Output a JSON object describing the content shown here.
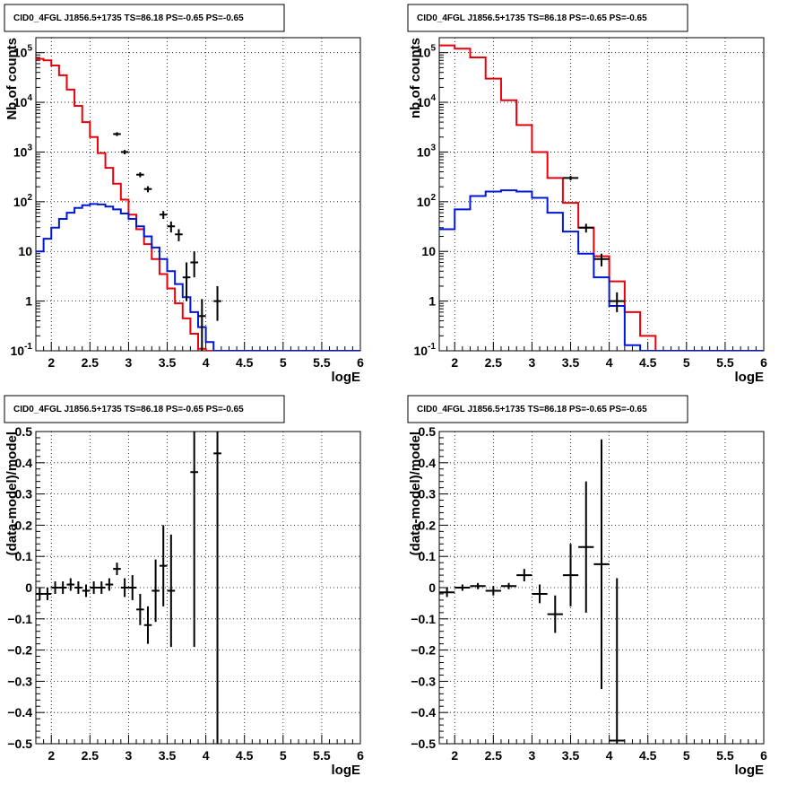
{
  "chart_data": [
    {
      "type": "line",
      "title": "CID0_4FGL J1856.5+1735 TS=86.18 PS=-0.65 PS=-0.65",
      "xlabel": "logE",
      "ylabel": "Nb of counts",
      "log_y": true,
      "xlim": [
        1.8,
        6.0
      ],
      "ylim": [
        0.1,
        200000
      ],
      "grid": true,
      "x_ticks": [
        "2",
        "2.5",
        "3",
        "3.5",
        "4",
        "4.5",
        "5",
        "5.5",
        "6"
      ],
      "y_ticks": [
        {
          "base": "10",
          "exp": "-1"
        },
        {
          "base": "1",
          "exp": ""
        },
        {
          "base": "10",
          "exp": ""
        },
        {
          "base": "10",
          "exp": "2"
        },
        {
          "base": "10",
          "exp": "3"
        },
        {
          "base": "10",
          "exp": "4"
        },
        {
          "base": "10",
          "exp": "5"
        }
      ],
      "series": [
        {
          "color": "#e8000b",
          "kind": "step",
          "edges": [
            1.8,
            1.9,
            2.0,
            2.1,
            2.2,
            2.3,
            2.4,
            2.5,
            2.6,
            2.7,
            2.8,
            2.9,
            3.0,
            3.1,
            3.2,
            3.3,
            3.4,
            3.5,
            3.6,
            3.7,
            3.8,
            3.9,
            4.0,
            4.1,
            4.2,
            4.3,
            4.4,
            4.5,
            4.6,
            4.7,
            4.8,
            4.9,
            5.0,
            5.1,
            5.2,
            5.3,
            5.4,
            5.5,
            5.6,
            5.7,
            5.8,
            5.9,
            6.0
          ],
          "values": [
            75000,
            70000,
            55000,
            35000,
            18000,
            8500,
            4000,
            2000,
            950,
            480,
            230,
            110,
            55,
            28,
            14,
            7,
            3.5,
            1.8,
            0.9,
            0.45,
            0.22,
            0.11,
            0.1,
            0.1,
            0.1,
            0.1,
            0.1,
            0.1,
            0.1,
            0.1,
            0.1,
            0.1,
            0.1,
            0.1,
            0.1,
            0.1,
            0.1,
            0.1,
            0.1,
            0.1,
            0.1,
            0.1
          ]
        },
        {
          "color": "#0018d6",
          "kind": "step",
          "edges": [
            1.8,
            1.9,
            2.0,
            2.1,
            2.2,
            2.3,
            2.4,
            2.5,
            2.6,
            2.7,
            2.8,
            2.9,
            3.0,
            3.1,
            3.2,
            3.3,
            3.4,
            3.5,
            3.6,
            3.7,
            3.8,
            3.9,
            4.0,
            4.1,
            4.2,
            4.3,
            4.4,
            4.5,
            4.6,
            4.7,
            4.8,
            4.9,
            5.0,
            5.1,
            5.2,
            5.3,
            5.4,
            5.5,
            5.6,
            5.7,
            5.8,
            5.9,
            6.0
          ],
          "values": [
            10,
            18,
            30,
            45,
            60,
            75,
            85,
            90,
            88,
            80,
            70,
            58,
            45,
            32,
            20,
            12,
            7,
            4,
            2.2,
            1.2,
            0.6,
            0.3,
            0.15,
            0.1,
            0.1,
            0.1,
            0.1,
            0.1,
            0.1,
            0.1,
            0.1,
            0.1,
            0.1,
            0.1,
            0.1,
            0.1,
            0.1,
            0.1,
            0.1,
            0.1,
            0.1,
            0.1
          ]
        },
        {
          "color": "#000000",
          "kind": "errorbar",
          "x": [
            2.85,
            2.95,
            3.15,
            3.25,
            3.45,
            3.55,
            3.65,
            3.75,
            3.85,
            3.95,
            4.15
          ],
          "y": [
            2300,
            1000,
            350,
            180,
            55,
            32,
            22,
            3,
            6,
            0.5,
            1.0
          ],
          "err_lo": [
            200,
            100,
            40,
            25,
            10,
            8,
            6,
            2,
            3,
            0.4,
            0.6
          ],
          "err_hi": [
            200,
            100,
            40,
            25,
            10,
            8,
            6,
            3,
            4,
            0.6,
            1.0
          ],
          "xerr": 0.05
        }
      ]
    },
    {
      "type": "line",
      "title": "CID0_4FGL J1856.5+1735 TS=86.18 PS=-0.65 PS=-0.65",
      "xlabel": "logE",
      "ylabel": "nb of counts",
      "log_y": true,
      "xlim": [
        1.8,
        6.0
      ],
      "ylim": [
        0.1,
        200000
      ],
      "grid": true,
      "x_ticks": [
        "2",
        "2.5",
        "3",
        "3.5",
        "4",
        "4.5",
        "5",
        "5.5",
        "6"
      ],
      "y_ticks": [
        {
          "base": "10",
          "exp": "-1"
        },
        {
          "base": "1",
          "exp": ""
        },
        {
          "base": "10",
          "exp": ""
        },
        {
          "base": "10",
          "exp": "2"
        },
        {
          "base": "10",
          "exp": "3"
        },
        {
          "base": "10",
          "exp": "4"
        },
        {
          "base": "10",
          "exp": "5"
        }
      ],
      "series": [
        {
          "color": "#e8000b",
          "kind": "step",
          "edges": [
            1.8,
            2.0,
            2.2,
            2.4,
            2.6,
            2.8,
            3.0,
            3.2,
            3.4,
            3.6,
            3.8,
            4.0,
            4.2,
            4.4,
            4.6,
            4.8,
            5.0,
            5.2,
            5.4,
            5.6,
            5.8,
            6.0
          ],
          "values": [
            140000,
            120000,
            80000,
            30000,
            11000,
            3500,
            1000,
            300,
            95,
            30,
            8,
            2.5,
            0.6,
            0.2,
            0.1,
            0.1,
            0.1,
            0.1,
            0.1,
            0.1,
            0.1
          ]
        },
        {
          "color": "#0018d6",
          "kind": "step",
          "edges": [
            1.8,
            2.0,
            2.2,
            2.4,
            2.6,
            2.8,
            3.0,
            3.2,
            3.4,
            3.6,
            3.8,
            4.0,
            4.2,
            4.4,
            4.6,
            4.8,
            5.0,
            5.2,
            5.4,
            5.6,
            5.8,
            6.0
          ],
          "values": [
            28,
            70,
            130,
            160,
            170,
            160,
            120,
            60,
            25,
            9,
            3,
            0.8,
            0.13,
            0.1,
            0.1,
            0.1,
            0.1,
            0.1,
            0.1,
            0.1,
            0.1
          ]
        },
        {
          "color": "#000000",
          "kind": "errorbar",
          "x": [
            3.5,
            3.7,
            3.9,
            4.1
          ],
          "y": [
            300,
            30,
            7,
            1.0
          ],
          "err_lo": [
            30,
            6,
            2,
            0.4
          ],
          "err_hi": [
            30,
            6,
            2,
            0.5
          ],
          "xerr": 0.1
        }
      ]
    },
    {
      "type": "scatter",
      "title": "CID0_4FGL J1856.5+1735 TS=86.18 PS=-0.65 PS=-0.65",
      "xlabel": "logE",
      "ylabel": "(data-model)/model",
      "log_y": false,
      "xlim": [
        1.8,
        6.0
      ],
      "ylim": [
        -0.5,
        0.5
      ],
      "grid": true,
      "x_ticks": [
        "2",
        "2.5",
        "3",
        "3.5",
        "4",
        "4.5",
        "5",
        "5.5",
        "6"
      ],
      "y_ticks": [
        "−0.5",
        "−0.4",
        "−0.3",
        "−0.2",
        "−0.1",
        "0",
        "0.1",
        "0.2",
        "0.3",
        "0.4",
        "0.5"
      ],
      "series": [
        {
          "color": "#000000",
          "kind": "errorbar",
          "x": [
            1.85,
            1.95,
            2.05,
            2.15,
            2.25,
            2.35,
            2.45,
            2.55,
            2.65,
            2.75,
            2.85,
            2.95,
            3.05,
            3.15,
            3.25,
            3.35,
            3.45,
            3.55,
            3.85,
            4.15
          ],
          "y": [
            -0.02,
            -0.02,
            0.0,
            0.0,
            0.01,
            0.0,
            -0.01,
            0.0,
            0.0,
            0.01,
            0.06,
            0.0,
            0.0,
            -0.07,
            -0.12,
            -0.01,
            0.07,
            -0.01,
            0.37,
            0.43
          ],
          "err": [
            0.02,
            0.02,
            0.02,
            0.02,
            0.02,
            0.02,
            0.02,
            0.02,
            0.02,
            0.02,
            0.02,
            0.03,
            0.04,
            0.05,
            0.06,
            0.1,
            0.13,
            0.18,
            0.56,
            1.0
          ],
          "xerr": 0.05
        }
      ]
    },
    {
      "type": "scatter",
      "title": "CID0_4FGL J1856.5+1735 TS=86.18 PS=-0.65 PS=-0.65",
      "xlabel": "logE",
      "ylabel": "(data-model)/model",
      "log_y": false,
      "xlim": [
        1.8,
        6.0
      ],
      "ylim": [
        -0.5,
        0.5
      ],
      "grid": true,
      "x_ticks": [
        "2",
        "2.5",
        "3",
        "3.5",
        "4",
        "4.5",
        "5",
        "5.5",
        "6"
      ],
      "y_ticks": [
        "−0.5",
        "−0.4",
        "−0.3",
        "−0.2",
        "−0.1",
        "0",
        "0.1",
        "0.2",
        "0.3",
        "0.4",
        "0.5"
      ],
      "series": [
        {
          "color": "#000000",
          "kind": "errorbar",
          "x": [
            1.9,
            2.1,
            2.3,
            2.5,
            2.7,
            2.9,
            3.1,
            3.3,
            3.5,
            3.7,
            3.9,
            4.1
          ],
          "y": [
            -0.015,
            0.0,
            0.005,
            -0.01,
            0.005,
            0.04,
            -0.02,
            -0.085,
            0.04,
            0.13,
            0.075,
            -0.49
          ],
          "err": [
            0.015,
            0.01,
            0.01,
            0.015,
            0.01,
            0.02,
            0.03,
            0.06,
            0.1,
            0.21,
            0.4,
            0.52
          ],
          "xerr": 0.1
        }
      ]
    }
  ]
}
